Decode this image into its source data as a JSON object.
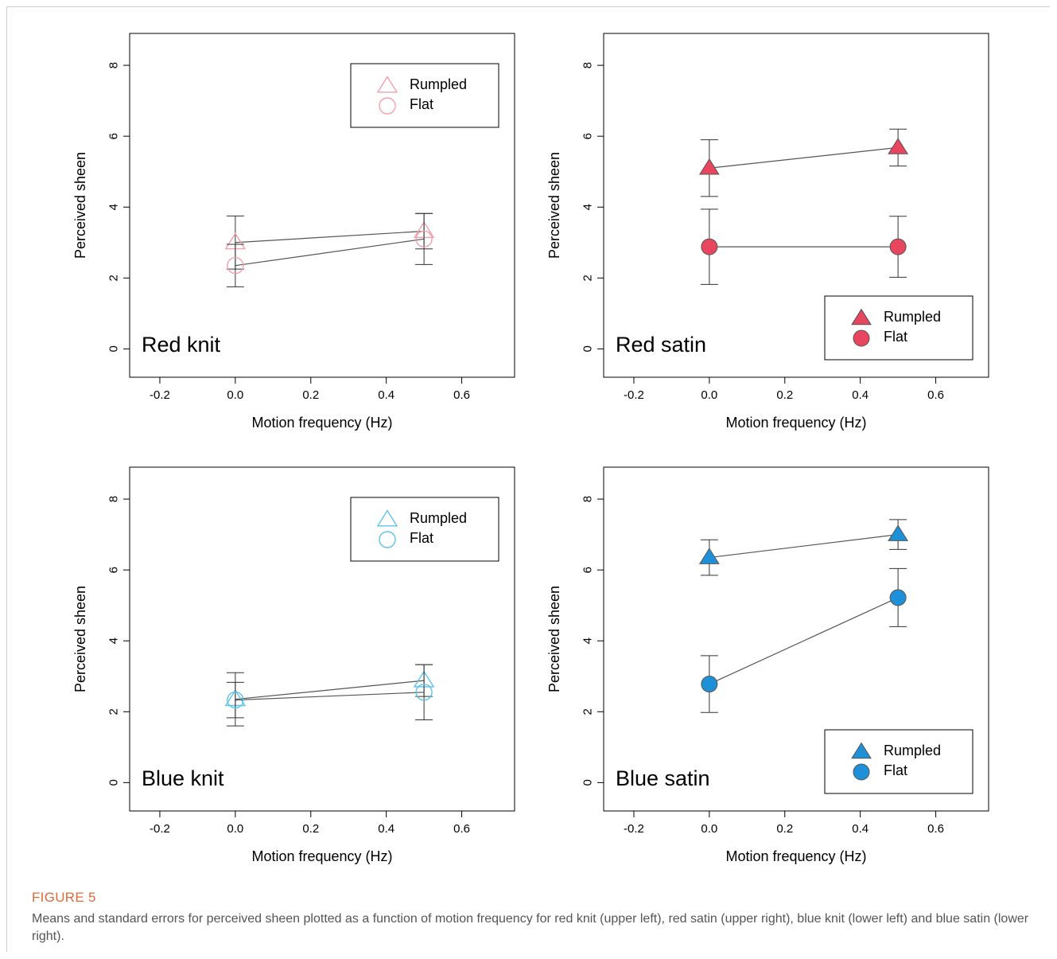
{
  "figure": {
    "label": "FIGURE 5",
    "caption": "Means and standard errors for perceived sheen plotted as a function of motion frequency for red knit (upper left), red satin (upper right), blue knit (lower left) and blue satin (lower right)."
  },
  "chart_data": [
    {
      "type": "line",
      "panel_label": "Red knit",
      "xlabel": "Motion frequency (Hz)",
      "ylabel": "Perceived sheen",
      "xlim": [
        -0.28,
        0.74
      ],
      "ylim": [
        -0.8,
        8.9
      ],
      "xticks": [
        -0.2,
        0.0,
        0.2,
        0.4,
        0.6
      ],
      "xtick_labels": [
        "-0.2",
        "0.0",
        "0.2",
        "0.4",
        "0.6"
      ],
      "yticks": [
        0,
        2,
        4,
        6,
        8
      ],
      "ytick_labels": [
        "0",
        "2",
        "4",
        "6",
        "8"
      ],
      "legend_position": "top-right",
      "marker_fill": false,
      "color": "#f4a0aa",
      "series": [
        {
          "name": "Rumpled",
          "marker": "triangle",
          "x": [
            0.0,
            0.5
          ],
          "y": [
            3.0,
            3.32
          ],
          "err": [
            0.75,
            0.5
          ]
        },
        {
          "name": "Flat",
          "marker": "circle",
          "x": [
            0.0,
            0.5
          ],
          "y": [
            2.35,
            3.1
          ],
          "err": [
            0.6,
            0.72
          ]
        }
      ]
    },
    {
      "type": "line",
      "panel_label": "Red satin",
      "xlabel": "Motion frequency (Hz)",
      "ylabel": "Perceived sheen",
      "xlim": [
        -0.28,
        0.74
      ],
      "ylim": [
        -0.8,
        8.9
      ],
      "xticks": [
        -0.2,
        0.0,
        0.2,
        0.4,
        0.6
      ],
      "xtick_labels": [
        "-0.2",
        "0.0",
        "0.2",
        "0.4",
        "0.6"
      ],
      "yticks": [
        0,
        2,
        4,
        6,
        8
      ],
      "ytick_labels": [
        "0",
        "2",
        "4",
        "6",
        "8"
      ],
      "legend_position": "bottom-right",
      "marker_fill": true,
      "color": "#e8455e",
      "series": [
        {
          "name": "Rumpled",
          "marker": "triangle",
          "x": [
            0.0,
            0.5
          ],
          "y": [
            5.1,
            5.68
          ],
          "err": [
            0.8,
            0.52
          ]
        },
        {
          "name": "Flat",
          "marker": "circle",
          "x": [
            0.0,
            0.5
          ],
          "y": [
            2.88,
            2.88
          ],
          "err": [
            1.06,
            0.86
          ]
        }
      ]
    },
    {
      "type": "line",
      "panel_label": "Blue knit",
      "xlabel": "Motion frequency (Hz)",
      "ylabel": "Perceived sheen",
      "xlim": [
        -0.28,
        0.74
      ],
      "ylim": [
        -0.8,
        8.9
      ],
      "xticks": [
        -0.2,
        0.0,
        0.2,
        0.4,
        0.6
      ],
      "xtick_labels": [
        "-0.2",
        "0.0",
        "0.2",
        "0.4",
        "0.6"
      ],
      "yticks": [
        0,
        2,
        4,
        6,
        8
      ],
      "ytick_labels": [
        "0",
        "2",
        "4",
        "6",
        "8"
      ],
      "legend_position": "top-right",
      "marker_fill": false,
      "color": "#5cc3ea",
      "series": [
        {
          "name": "Rumpled",
          "marker": "triangle",
          "x": [
            0.0,
            0.5
          ],
          "y": [
            2.35,
            2.88
          ],
          "err": [
            0.75,
            0.45
          ]
        },
        {
          "name": "Flat",
          "marker": "circle",
          "x": [
            0.0,
            0.5
          ],
          "y": [
            2.33,
            2.55
          ],
          "err": [
            0.5,
            0.78
          ]
        }
      ]
    },
    {
      "type": "line",
      "panel_label": "Blue satin",
      "xlabel": "Motion frequency (Hz)",
      "ylabel": "Perceived sheen",
      "xlim": [
        -0.28,
        0.74
      ],
      "ylim": [
        -0.8,
        8.9
      ],
      "xticks": [
        -0.2,
        0.0,
        0.2,
        0.4,
        0.6
      ],
      "xtick_labels": [
        "-0.2",
        "0.0",
        "0.2",
        "0.4",
        "0.6"
      ],
      "yticks": [
        0,
        2,
        4,
        6,
        8
      ],
      "ytick_labels": [
        "0",
        "2",
        "4",
        "6",
        "8"
      ],
      "legend_position": "bottom-right",
      "marker_fill": true,
      "color": "#1e90d8",
      "series": [
        {
          "name": "Rumpled",
          "marker": "triangle",
          "x": [
            0.0,
            0.5
          ],
          "y": [
            6.35,
            7.0
          ],
          "err": [
            0.5,
            0.42
          ]
        },
        {
          "name": "Flat",
          "marker": "circle",
          "x": [
            0.0,
            0.5
          ],
          "y": [
            2.78,
            5.22
          ],
          "err": [
            0.8,
            0.82
          ]
        }
      ]
    }
  ]
}
